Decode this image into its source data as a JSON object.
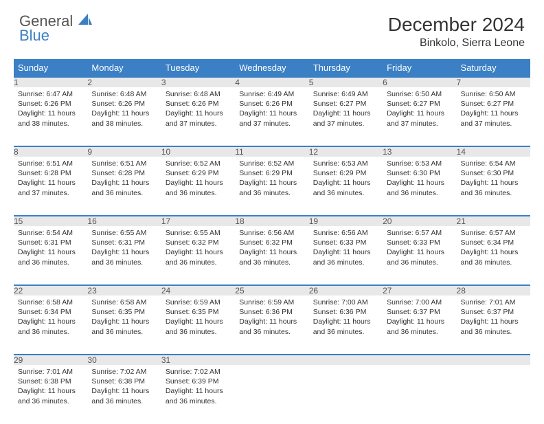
{
  "logo": {
    "line1": "General",
    "line2": "Blue"
  },
  "header": {
    "month_title": "December 2024",
    "location": "Binkolo, Sierra Leone"
  },
  "colors": {
    "header_bg": "#3b7fc4",
    "header_text": "#ffffff",
    "daynum_bg": "#e8e8e8",
    "row_border": "#3b7fc4",
    "body_text": "#333333"
  },
  "weekdays": [
    "Sunday",
    "Monday",
    "Tuesday",
    "Wednesday",
    "Thursday",
    "Friday",
    "Saturday"
  ],
  "weeks": [
    [
      {
        "n": "1",
        "sr": "6:47 AM",
        "ss": "6:26 PM",
        "dl": "11 hours and 38 minutes."
      },
      {
        "n": "2",
        "sr": "6:48 AM",
        "ss": "6:26 PM",
        "dl": "11 hours and 38 minutes."
      },
      {
        "n": "3",
        "sr": "6:48 AM",
        "ss": "6:26 PM",
        "dl": "11 hours and 37 minutes."
      },
      {
        "n": "4",
        "sr": "6:49 AM",
        "ss": "6:26 PM",
        "dl": "11 hours and 37 minutes."
      },
      {
        "n": "5",
        "sr": "6:49 AM",
        "ss": "6:27 PM",
        "dl": "11 hours and 37 minutes."
      },
      {
        "n": "6",
        "sr": "6:50 AM",
        "ss": "6:27 PM",
        "dl": "11 hours and 37 minutes."
      },
      {
        "n": "7",
        "sr": "6:50 AM",
        "ss": "6:27 PM",
        "dl": "11 hours and 37 minutes."
      }
    ],
    [
      {
        "n": "8",
        "sr": "6:51 AM",
        "ss": "6:28 PM",
        "dl": "11 hours and 37 minutes."
      },
      {
        "n": "9",
        "sr": "6:51 AM",
        "ss": "6:28 PM",
        "dl": "11 hours and 36 minutes."
      },
      {
        "n": "10",
        "sr": "6:52 AM",
        "ss": "6:29 PM",
        "dl": "11 hours and 36 minutes."
      },
      {
        "n": "11",
        "sr": "6:52 AM",
        "ss": "6:29 PM",
        "dl": "11 hours and 36 minutes."
      },
      {
        "n": "12",
        "sr": "6:53 AM",
        "ss": "6:29 PM",
        "dl": "11 hours and 36 minutes."
      },
      {
        "n": "13",
        "sr": "6:53 AM",
        "ss": "6:30 PM",
        "dl": "11 hours and 36 minutes."
      },
      {
        "n": "14",
        "sr": "6:54 AM",
        "ss": "6:30 PM",
        "dl": "11 hours and 36 minutes."
      }
    ],
    [
      {
        "n": "15",
        "sr": "6:54 AM",
        "ss": "6:31 PM",
        "dl": "11 hours and 36 minutes."
      },
      {
        "n": "16",
        "sr": "6:55 AM",
        "ss": "6:31 PM",
        "dl": "11 hours and 36 minutes."
      },
      {
        "n": "17",
        "sr": "6:55 AM",
        "ss": "6:32 PM",
        "dl": "11 hours and 36 minutes."
      },
      {
        "n": "18",
        "sr": "6:56 AM",
        "ss": "6:32 PM",
        "dl": "11 hours and 36 minutes."
      },
      {
        "n": "19",
        "sr": "6:56 AM",
        "ss": "6:33 PM",
        "dl": "11 hours and 36 minutes."
      },
      {
        "n": "20",
        "sr": "6:57 AM",
        "ss": "6:33 PM",
        "dl": "11 hours and 36 minutes."
      },
      {
        "n": "21",
        "sr": "6:57 AM",
        "ss": "6:34 PM",
        "dl": "11 hours and 36 minutes."
      }
    ],
    [
      {
        "n": "22",
        "sr": "6:58 AM",
        "ss": "6:34 PM",
        "dl": "11 hours and 36 minutes."
      },
      {
        "n": "23",
        "sr": "6:58 AM",
        "ss": "6:35 PM",
        "dl": "11 hours and 36 minutes."
      },
      {
        "n": "24",
        "sr": "6:59 AM",
        "ss": "6:35 PM",
        "dl": "11 hours and 36 minutes."
      },
      {
        "n": "25",
        "sr": "6:59 AM",
        "ss": "6:36 PM",
        "dl": "11 hours and 36 minutes."
      },
      {
        "n": "26",
        "sr": "7:00 AM",
        "ss": "6:36 PM",
        "dl": "11 hours and 36 minutes."
      },
      {
        "n": "27",
        "sr": "7:00 AM",
        "ss": "6:37 PM",
        "dl": "11 hours and 36 minutes."
      },
      {
        "n": "28",
        "sr": "7:01 AM",
        "ss": "6:37 PM",
        "dl": "11 hours and 36 minutes."
      }
    ],
    [
      {
        "n": "29",
        "sr": "7:01 AM",
        "ss": "6:38 PM",
        "dl": "11 hours and 36 minutes."
      },
      {
        "n": "30",
        "sr": "7:02 AM",
        "ss": "6:38 PM",
        "dl": "11 hours and 36 minutes."
      },
      {
        "n": "31",
        "sr": "7:02 AM",
        "ss": "6:39 PM",
        "dl": "11 hours and 36 minutes."
      },
      null,
      null,
      null,
      null
    ]
  ],
  "labels": {
    "sunrise": "Sunrise:",
    "sunset": "Sunset:",
    "daylight": "Daylight:"
  }
}
